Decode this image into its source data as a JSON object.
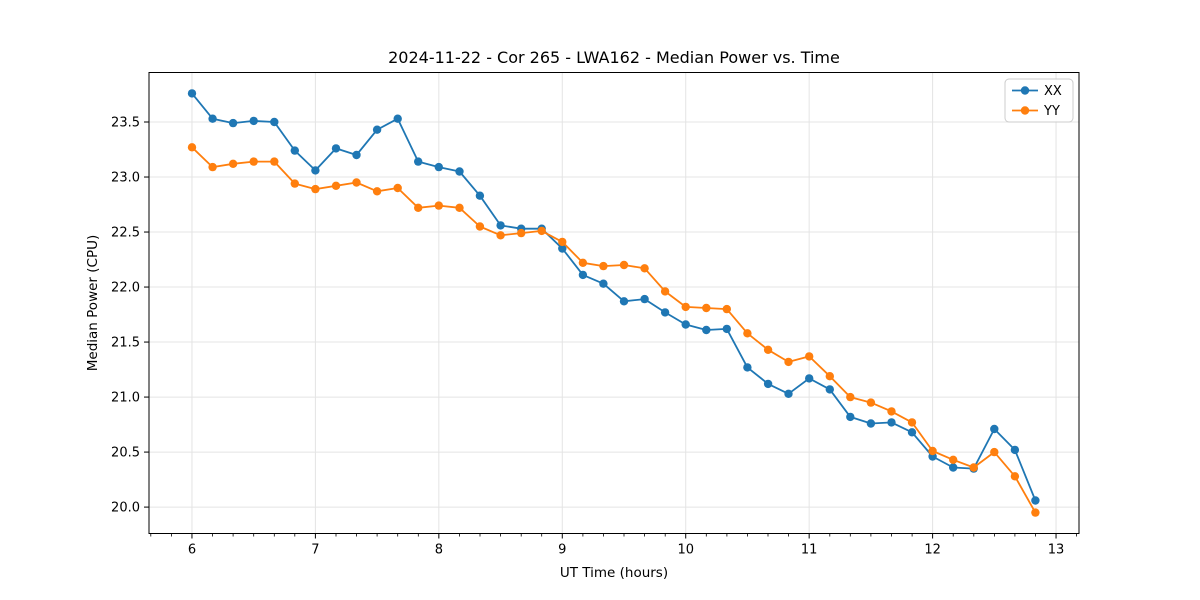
{
  "figure": {
    "title": "2024-11-22 - Cor 265 - LWA162 - Median Power vs. Time"
  },
  "chart_data": {
    "type": "line",
    "title": "2024-11-22 - Cor 265 - LWA162 - Median Power vs. Time",
    "xlabel": "UT Time (hours)",
    "ylabel": "Median Power (CPU)",
    "xlim": [
      5.652,
      13.186
    ],
    "ylim": [
      19.76,
      23.95
    ],
    "grid": true,
    "legend_position": "upper right",
    "x_ticks": [
      6,
      7,
      8,
      9,
      10,
      11,
      12,
      13
    ],
    "x_tick_labels": [
      "6",
      "7",
      "8",
      "9",
      "10",
      "11",
      "12",
      "13"
    ],
    "x_minor_step": 0.16667,
    "y_ticks": [
      20.0,
      20.5,
      21.0,
      21.5,
      22.0,
      22.5,
      23.0,
      23.5
    ],
    "y_tick_labels": [
      "20.0",
      "20.5",
      "21.0",
      "21.5",
      "22.0",
      "22.5",
      "23.0",
      "23.5"
    ],
    "x": [
      6.0,
      6.167,
      6.333,
      6.5,
      6.667,
      6.833,
      7.0,
      7.167,
      7.333,
      7.5,
      7.667,
      7.833,
      8.0,
      8.167,
      8.333,
      8.5,
      8.667,
      8.833,
      9.0,
      9.167,
      9.333,
      9.5,
      9.667,
      9.833,
      10.0,
      10.167,
      10.333,
      10.5,
      10.667,
      10.833,
      11.0,
      11.167,
      11.333,
      11.5,
      11.667,
      11.833,
      12.0,
      12.167,
      12.333,
      12.5,
      12.667,
      12.833
    ],
    "series": [
      {
        "name": "XX",
        "color": "#1f77b4",
        "values": [
          23.76,
          23.53,
          23.49,
          23.51,
          23.5,
          23.24,
          23.06,
          23.26,
          23.2,
          23.43,
          23.53,
          23.14,
          23.09,
          23.05,
          22.83,
          22.56,
          22.53,
          22.53,
          22.35,
          22.11,
          22.03,
          21.87,
          21.89,
          21.77,
          21.66,
          21.61,
          21.62,
          21.27,
          21.12,
          21.03,
          21.17,
          21.07,
          20.82,
          20.76,
          20.77,
          20.68,
          20.46,
          20.36,
          20.35,
          20.71,
          20.52,
          20.06
        ]
      },
      {
        "name": "YY",
        "color": "#ff7f0e",
        "values": [
          23.27,
          23.09,
          23.12,
          23.14,
          23.14,
          22.94,
          22.89,
          22.92,
          22.95,
          22.87,
          22.9,
          22.72,
          22.74,
          22.72,
          22.55,
          22.47,
          22.49,
          22.51,
          22.41,
          22.22,
          22.19,
          22.2,
          22.17,
          21.96,
          21.82,
          21.81,
          21.8,
          21.58,
          21.43,
          21.32,
          21.37,
          21.19,
          21.0,
          20.95,
          20.87,
          20.77,
          20.51,
          20.43,
          20.36,
          20.5,
          20.28,
          19.95
        ]
      }
    ],
    "style": {
      "grid_color": "#e4e4e4",
      "spine_color": "#000000",
      "background": "#ffffff",
      "marker": "circle"
    }
  }
}
